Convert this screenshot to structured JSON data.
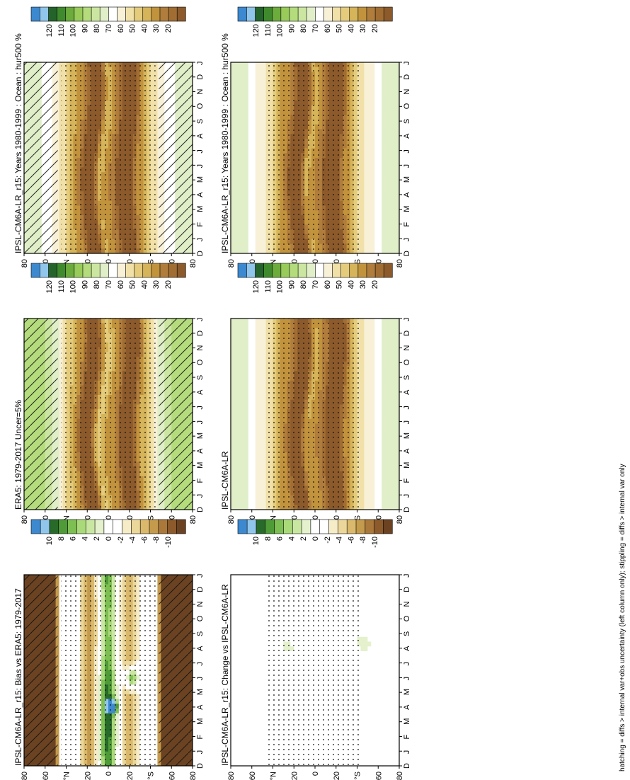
{
  "footer": "hatching = diffs > internal var+obs uncertainty (left column only); stippling = diffs > internal var only",
  "palettes": {
    "abs": [
      "#8c5a2b",
      "#a16d32",
      "#b07d3c",
      "#c2933d",
      "#d6b45a",
      "#e5cc7c",
      "#f1e1a8",
      "#f8f1d8",
      "#ffffff",
      "#e0efc8",
      "#cbe6a0",
      "#b4dc7c",
      "#98cb5a",
      "#6cac3c",
      "#3f8a2c",
      "#24642a",
      "#90c6ec",
      "#3d89d0"
    ],
    "diff": [
      "#6b4322",
      "#8c5a2b",
      "#a9783a",
      "#c49a4c",
      "#dab96c",
      "#ecd79a",
      "#f6ecc8",
      "#ffffff",
      "#ffffff",
      "#e4f1cc",
      "#cae7a2",
      "#aad97a",
      "#7dbf52",
      "#4f9b38",
      "#286a2a",
      "#90c6ec",
      "#3d89d0"
    ]
  },
  "colorbars": {
    "abs_labels": [
      "120",
      "110",
      "100",
      "90",
      "80",
      "70",
      "60",
      "50",
      "40",
      "30",
      "20"
    ],
    "diff_labels": [
      "10",
      "8",
      "6",
      "4",
      "2",
      "0",
      "-2",
      "-4",
      "-6",
      "-8",
      "-10"
    ]
  },
  "axes": {
    "month_labels": [
      "D",
      "J",
      "F",
      "M",
      "A",
      "M",
      "J",
      "J",
      "A",
      "S",
      "O",
      "N",
      "D",
      "J"
    ],
    "lat_labels": [
      "80",
      "60",
      "°N",
      "20",
      "0",
      "20",
      "°S",
      "60",
      "80"
    ]
  },
  "chart_data": [
    {
      "panel": "top-left",
      "type": "heatmap",
      "title": "IPSL-CM6A-LR_r15: Years 1980-1999 : Ocean : hur500 %",
      "x": "month (Dec–Jan annual cycle)",
      "y": "latitude (80°N to 80°S)",
      "colorbar": "abs",
      "clim": [
        20,
        120
      ],
      "fields": {
        "mode": "abs",
        "ridgeN": 15,
        "ridgeS": -18,
        "ampN": 15,
        "ampS": 14,
        "shift": 0.8,
        "bias": 0
      },
      "hatching": true,
      "stippling": true
    },
    {
      "panel": "mid-left",
      "type": "heatmap",
      "title": "ERA5: 1979-2017 Uncer=5%",
      "x": "month",
      "y": "latitude",
      "colorbar": "abs",
      "clim": [
        20,
        120
      ],
      "fields": {
        "mode": "abs",
        "ridgeN": 18,
        "ridgeS": -20,
        "ampN": 12,
        "ampS": 12,
        "shift": 0.9,
        "bias": 12
      },
      "hatching": true,
      "stippling": true
    },
    {
      "panel": "bottom-left",
      "type": "heatmap",
      "title": "IPSL-CM6A-LR_r15: Bias vs ERA5: 1979-2017",
      "x": "month",
      "y": "latitude",
      "colorbar": "diff",
      "clim": [
        -10,
        10
      ],
      "fields": {
        "mode": "bias"
      },
      "hatching": true,
      "stippling": true
    },
    {
      "panel": "top-right",
      "type": "heatmap",
      "title": "IPSL-CM6A-LR_r15: Years 1980-1999 : Ocean : hur500 %",
      "x": "month",
      "y": "latitude",
      "colorbar": "abs",
      "clim": [
        20,
        120
      ],
      "fields": {
        "mode": "abs",
        "ridgeN": 15,
        "ridgeS": -18,
        "ampN": 15,
        "ampS": 14,
        "shift": 0.8,
        "bias": -2
      },
      "hatching": false,
      "stippling": true
    },
    {
      "panel": "mid-right",
      "type": "heatmap",
      "title": "IPSL-CM6A-LR",
      "x": "month",
      "y": "latitude",
      "colorbar": "abs",
      "clim": [
        20,
        120
      ],
      "fields": {
        "mode": "abs",
        "ridgeN": 14,
        "ridgeS": -19,
        "ampN": 15,
        "ampS": 14,
        "shift": 0.8,
        "bias": -2
      },
      "hatching": false,
      "stippling": true
    },
    {
      "panel": "bottom-right",
      "type": "heatmap",
      "title": "IPSL-CM6A-LR_r15: Change vs IPSL-CM6A-LR",
      "x": "month",
      "y": "latitude",
      "colorbar": "diff",
      "clim": [
        -10,
        10
      ],
      "fields": {
        "mode": "change"
      },
      "hatching": false,
      "stippling": true
    }
  ]
}
